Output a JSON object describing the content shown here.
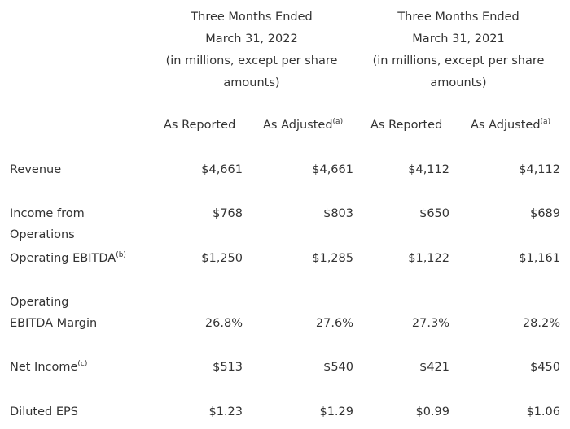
{
  "periods": [
    {
      "title": "Three Months Ended",
      "date": "March 31, 2022",
      "units_line1": "(in millions, except per share",
      "units_line2": "amounts)"
    },
    {
      "title": "Three Months Ended",
      "date": "March 31, 2021",
      "units_line1": "(in millions, except per share",
      "units_line2": "amounts)"
    }
  ],
  "columns": {
    "as_reported": "As Reported",
    "as_adjusted": "As Adjusted",
    "as_adjusted_note": "(a)"
  },
  "rows": [
    {
      "label": "Revenue",
      "note": "",
      "values": [
        "$4,661",
        "$4,661",
        "$4,112",
        "$4,112"
      ]
    },
    {
      "label": "Income from Operations",
      "note": "",
      "values": [
        "$768",
        "$803",
        "$650",
        "$689"
      ]
    },
    {
      "label": "Operating EBITDA",
      "note": "(b)",
      "values": [
        "$1,250",
        "$1,285",
        "$1,122",
        "$1,161"
      ]
    },
    {
      "label": "Operating EBITDA Margin",
      "note": "",
      "values": [
        "26.8%",
        "27.6%",
        "27.3%",
        "28.2%"
      ]
    },
    {
      "label": "Net Income",
      "note": "(c)",
      "values": [
        "$513",
        "$540",
        "$421",
        "$450"
      ]
    },
    {
      "label": "Diluted EPS",
      "note": "",
      "values": [
        "$1.23",
        "$1.29",
        "$0.99",
        "$1.06"
      ]
    }
  ]
}
